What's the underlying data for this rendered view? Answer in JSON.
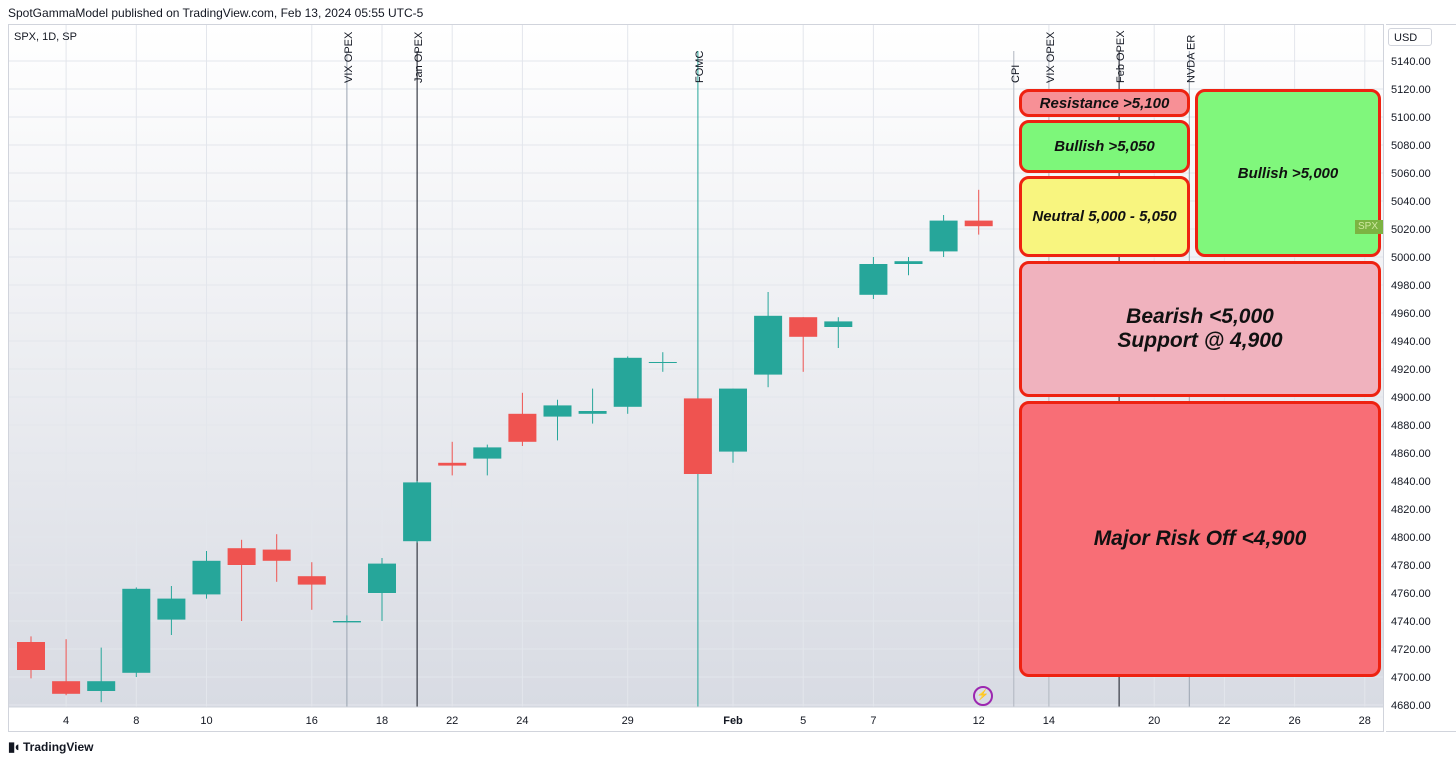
{
  "header": {
    "published": "SpotGammaModel published on TradingView.com, Feb 13, 2024 05:55 UTC-5"
  },
  "symbol": "SPX, 1D, SP",
  "currency": "USD",
  "footer": {
    "brand": "TradingView",
    "icon": "tradingview-logo-icon"
  },
  "colors": {
    "up": "#26a69a",
    "down": "#ef5350",
    "zone_border": "#ee2211"
  },
  "zones": [
    {
      "label": "Resistance >5,100",
      "fill": "#f79096",
      "low": 5100,
      "high": 5120,
      "col": "left"
    },
    {
      "label": "Bullish >5,050",
      "fill": "#7df77a",
      "low": 5060,
      "high": 5098,
      "col": "left"
    },
    {
      "label": "Neutral 5,000 - 5,050",
      "fill": "#f8f57f",
      "low": 5000,
      "high": 5058,
      "col": "left"
    },
    {
      "label": "Bullish >5,000",
      "fill": "#80f77c",
      "low": 5000,
      "high": 5120,
      "col": "right"
    },
    {
      "label": "Bearish <5,000\nSupport @ 4,900",
      "fill": "#f0b2be",
      "low": 4900,
      "high": 4997,
      "col": "full"
    },
    {
      "label": "Major Risk Off <4,900",
      "fill": "#f86e76",
      "low": 4700,
      "high": 4897,
      "col": "full"
    }
  ],
  "chart_data": {
    "type": "candlestick",
    "ylim": [
      4670,
      5152
    ],
    "y_ticks": [
      4680,
      4700,
      4720,
      4740,
      4760,
      4780,
      4800,
      4820,
      4840,
      4860,
      4880,
      4900,
      4920,
      4940,
      4960,
      4980,
      5000,
      5020,
      5040,
      5060,
      5080,
      5100,
      5120,
      5140
    ],
    "x_labels": [
      "4",
      "8",
      "10",
      "16",
      "18",
      "22",
      "24",
      "29",
      "Feb",
      "5",
      "7",
      "12",
      "14",
      "20",
      "22",
      "26",
      "28"
    ],
    "candles": [
      {
        "date": "2024-01-03",
        "o": 4725,
        "h": 4729,
        "l": 4699,
        "c": 4705
      },
      {
        "date": "2024-01-04",
        "o": 4697,
        "h": 4727,
        "l": 4687,
        "c": 4688
      },
      {
        "date": "2024-01-05",
        "o": 4690,
        "h": 4721,
        "l": 4682,
        "c": 4697
      },
      {
        "date": "2024-01-08",
        "o": 4703,
        "h": 4764,
        "l": 4700,
        "c": 4763
      },
      {
        "date": "2024-01-09",
        "o": 4741,
        "h": 4765,
        "l": 4730,
        "c": 4756
      },
      {
        "date": "2024-01-10",
        "o": 4759,
        "h": 4790,
        "l": 4756,
        "c": 4783
      },
      {
        "date": "2024-01-11",
        "o": 4792,
        "h": 4798,
        "l": 4740,
        "c": 4780
      },
      {
        "date": "2024-01-12",
        "o": 4791,
        "h": 4802,
        "l": 4768,
        "c": 4783
      },
      {
        "date": "2024-01-16",
        "o": 4772,
        "h": 4782,
        "l": 4748,
        "c": 4766
      },
      {
        "date": "2024-01-17",
        "o": 4739,
        "h": 4744,
        "l": 4739,
        "c": 4740
      },
      {
        "date": "2024-01-18",
        "o": 4760,
        "h": 4785,
        "l": 4740,
        "c": 4781
      },
      {
        "date": "2024-01-19",
        "o": 4797,
        "h": 4840,
        "l": 4796,
        "c": 4839
      },
      {
        "date": "2024-01-22",
        "o": 4853,
        "h": 4868,
        "l": 4844,
        "c": 4851
      },
      {
        "date": "2024-01-23",
        "o": 4856,
        "h": 4866,
        "l": 4844,
        "c": 4864
      },
      {
        "date": "2024-01-24",
        "o": 4888,
        "h": 4903,
        "l": 4865,
        "c": 4868
      },
      {
        "date": "2024-01-25",
        "o": 4886,
        "h": 4898,
        "l": 4869,
        "c": 4894
      },
      {
        "date": "2024-01-26",
        "o": 4888,
        "h": 4906,
        "l": 4881,
        "c": 4890
      },
      {
        "date": "2024-01-29",
        "o": 4893,
        "h": 4929,
        "l": 4888,
        "c": 4928
      },
      {
        "date": "2024-01-30",
        "o": 4925,
        "h": 4932,
        "l": 4918,
        "c": 4925
      },
      {
        "date": "2024-01-31",
        "o": 4899,
        "h": 4899,
        "l": 4845,
        "c": 4845
      },
      {
        "date": "2024-02-01",
        "o": 4861,
        "h": 4906,
        "l": 4853,
        "c": 4906
      },
      {
        "date": "2024-02-02",
        "o": 4916,
        "h": 4975,
        "l": 4907,
        "c": 4958
      },
      {
        "date": "2024-02-05",
        "o": 4957,
        "h": 4957,
        "l": 4918,
        "c": 4943
      },
      {
        "date": "2024-02-06",
        "o": 4950,
        "h": 4957,
        "l": 4935,
        "c": 4954
      },
      {
        "date": "2024-02-07",
        "o": 4973,
        "h": 5000,
        "l": 4970,
        "c": 4995
      },
      {
        "date": "2024-02-08",
        "o": 4995,
        "h": 5000,
        "l": 4987,
        "c": 4997
      },
      {
        "date": "2024-02-09",
        "o": 5004,
        "h": 5030,
        "l": 5000,
        "c": 5026
      },
      {
        "date": "2024-02-12",
        "o": 5026,
        "h": 5048,
        "l": 5016,
        "c": 5022
      }
    ],
    "events": [
      {
        "label": "VIX OPEX",
        "date": "2024-01-17",
        "color": "#9aa4b1"
      },
      {
        "label": "Jan OPEX",
        "date": "2024-01-19",
        "color": "#131722"
      },
      {
        "label": "FOMC",
        "date": "2024-01-31",
        "color": "#26a69a"
      },
      {
        "label": "CPI",
        "date": "2024-02-13",
        "color": "#b0b6c0"
      },
      {
        "label": "VIX OPEX",
        "date": "2024-02-14",
        "color": "#b0b6c0"
      },
      {
        "label": "Feb OPEX",
        "date": "2024-02-16",
        "color": "#131722"
      },
      {
        "label": "NVDA ER",
        "date": "2024-02-21",
        "color": "#9aa4b1"
      }
    ],
    "last_price_tag": "SPX"
  }
}
